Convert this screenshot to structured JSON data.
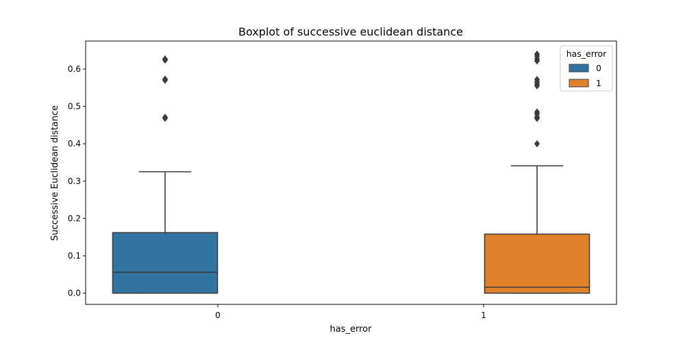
{
  "chart_data": {
    "type": "box",
    "title": "Boxplot of successive euclidean distance",
    "xlabel": "has_error",
    "ylabel": "Successive Euclidean distance",
    "ylim": [
      -0.03,
      0.675
    ],
    "yticks": [
      0.0,
      0.1,
      0.2,
      0.3,
      0.4,
      0.5,
      0.6
    ],
    "ytick_labels": [
      "0.0",
      "0.1",
      "0.2",
      "0.3",
      "0.4",
      "0.5",
      "0.6"
    ],
    "categories": [
      "0",
      "1"
    ],
    "legend": {
      "title": "has_error",
      "placement": "top-right",
      "entries": [
        "0",
        "1"
      ]
    },
    "series": [
      {
        "name": "0",
        "category": "0",
        "color": "#3274a1",
        "whisker_low": 0.0,
        "q1": 0.0,
        "median": 0.056,
        "q3": 0.162,
        "whisker_high": 0.325,
        "outliers": [
          0.468,
          0.471,
          0.57,
          0.573,
          0.624,
          0.627
        ]
      },
      {
        "name": "1",
        "category": "1",
        "color": "#e1812c",
        "whisker_low": 0.0,
        "q1": 0.0,
        "median": 0.016,
        "q3": 0.158,
        "whisker_high": 0.341,
        "outliers": [
          0.4,
          0.468,
          0.472,
          0.48,
          0.485,
          0.555,
          0.56,
          0.566,
          0.572,
          0.622,
          0.627,
          0.635,
          0.64
        ]
      }
    ],
    "grid": false
  }
}
